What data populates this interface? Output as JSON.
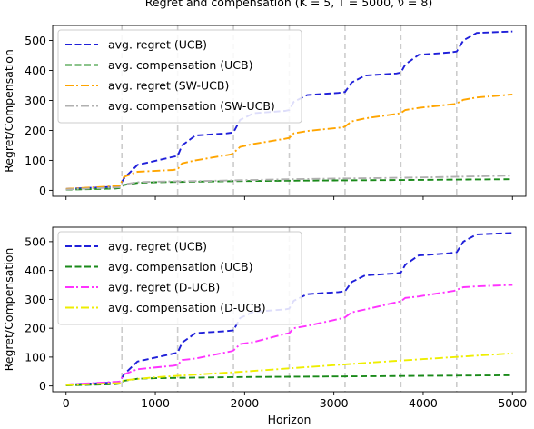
{
  "title": "Regret and compensation (K = 5, T = 5000, ν = 8)",
  "x_label": "Horizon",
  "colors": {
    "ucb_regret": "#1f1fd9",
    "compensation_green": "#1a8a1a",
    "sw_regret": "#ffa500",
    "sw_comp": "#b0b0b0",
    "d_regret": "#ff33ff",
    "d_comp": "#eeee00",
    "vline": "#cccccc"
  },
  "chart_data": [
    {
      "type": "line",
      "ylabel": "Regret/Compensation",
      "xlabel": "",
      "xlim": [
        -150,
        5150
      ],
      "ylim": [
        -20,
        550
      ],
      "x_ticks": [
        "0",
        "1000",
        "2000",
        "3000",
        "4000",
        "5000"
      ],
      "x_tick_values": [
        0,
        1000,
        2000,
        3000,
        4000,
        5000
      ],
      "y_ticks": [
        "0",
        "100",
        "200",
        "300",
        "400",
        "500"
      ],
      "y_tick_values": [
        0,
        100,
        200,
        300,
        400,
        500
      ],
      "show_x_tick_labels": false,
      "change_points": [
        625,
        1250,
        1875,
        2500,
        3125,
        3750,
        4375
      ],
      "legend_position": "top-left",
      "series": [
        {
          "name": "avg. regret (UCB)",
          "style": "dashed",
          "color_key": "ucb_regret",
          "x": [
            0,
            550,
            600,
            650,
            800,
            1200,
            1250,
            1300,
            1450,
            1800,
            1875,
            1950,
            2100,
            2450,
            2500,
            2550,
            2700,
            3050,
            3125,
            3200,
            3350,
            3700,
            3750,
            3800,
            3950,
            4300,
            4375,
            4450,
            4600,
            5000
          ],
          "y": [
            5,
            12,
            15,
            40,
            85,
            112,
            115,
            150,
            183,
            190,
            193,
            235,
            257,
            265,
            268,
            295,
            318,
            325,
            328,
            360,
            383,
            390,
            393,
            420,
            452,
            460,
            463,
            500,
            525,
            530
          ]
        },
        {
          "name": "avg. compensation (UCB)",
          "style": "dashed",
          "color_key": "compensation_green",
          "x": [
            0,
            550,
            600,
            650,
            800,
            1000,
            1500,
            2000,
            2500,
            3000,
            3500,
            4000,
            4500,
            5000
          ],
          "y": [
            2,
            6,
            8,
            18,
            25,
            27,
            29,
            31,
            32,
            33,
            34,
            35,
            36,
            37
          ]
        },
        {
          "name": "avg. regret (SW-UCB)",
          "style": "dashdot",
          "color_key": "sw_regret",
          "x": [
            0,
            600,
            650,
            800,
            1200,
            1250,
            1300,
            1450,
            1850,
            1875,
            1950,
            2100,
            2450,
            2500,
            2550,
            2700,
            3100,
            3125,
            3200,
            3350,
            3700,
            3750,
            3800,
            3950,
            4350,
            4375,
            4450,
            4600,
            5000
          ],
          "y": [
            5,
            15,
            45,
            62,
            68,
            70,
            90,
            100,
            120,
            125,
            145,
            155,
            172,
            175,
            190,
            198,
            210,
            213,
            230,
            240,
            255,
            258,
            268,
            275,
            288,
            290,
            302,
            310,
            320
          ]
        },
        {
          "name": "avg. compensation (SW-UCB)",
          "style": "dashdot",
          "color_key": "sw_comp",
          "x": [
            0,
            600,
            650,
            800,
            1000,
            1500,
            2000,
            2500,
            3000,
            3500,
            4000,
            4500,
            5000
          ],
          "y": [
            3,
            10,
            20,
            27,
            29,
            31,
            34,
            37,
            39,
            41,
            43,
            46,
            49
          ]
        }
      ]
    },
    {
      "type": "line",
      "ylabel": "Regret/Compensation",
      "xlabel": "Horizon",
      "xlim": [
        -150,
        5150
      ],
      "ylim": [
        -20,
        550
      ],
      "x_ticks": [
        "0",
        "1000",
        "2000",
        "3000",
        "4000",
        "5000"
      ],
      "x_tick_values": [
        0,
        1000,
        2000,
        3000,
        4000,
        5000
      ],
      "y_ticks": [
        "0",
        "100",
        "200",
        "300",
        "400",
        "500"
      ],
      "y_tick_values": [
        0,
        100,
        200,
        300,
        400,
        500
      ],
      "show_x_tick_labels": true,
      "change_points": [
        625,
        1250,
        1875,
        2500,
        3125,
        3750,
        4375
      ],
      "legend_position": "top-left",
      "series": [
        {
          "name": "avg. regret (UCB)",
          "style": "dashed",
          "color_key": "ucb_regret",
          "x": [
            0,
            550,
            600,
            650,
            800,
            1200,
            1250,
            1300,
            1450,
            1800,
            1875,
            1950,
            2100,
            2450,
            2500,
            2550,
            2700,
            3050,
            3125,
            3200,
            3350,
            3700,
            3750,
            3800,
            3950,
            4300,
            4375,
            4450,
            4600,
            5000
          ],
          "y": [
            5,
            12,
            15,
            40,
            85,
            112,
            115,
            150,
            183,
            190,
            193,
            235,
            257,
            265,
            268,
            295,
            318,
            325,
            328,
            360,
            383,
            390,
            393,
            420,
            452,
            460,
            463,
            500,
            525,
            530
          ]
        },
        {
          "name": "avg. compensation (UCB)",
          "style": "dashed",
          "color_key": "compensation_green",
          "x": [
            0,
            550,
            600,
            650,
            800,
            1000,
            1500,
            2000,
            2500,
            3000,
            3500,
            4000,
            4500,
            5000
          ],
          "y": [
            2,
            6,
            8,
            18,
            25,
            27,
            29,
            31,
            32,
            33,
            34,
            35,
            36,
            37
          ]
        },
        {
          "name": "avg. regret (D-UCB)",
          "style": "dashdot",
          "color_key": "d_regret",
          "x": [
            0,
            600,
            650,
            800,
            1200,
            1250,
            1300,
            1450,
            1850,
            1875,
            1950,
            2100,
            2450,
            2500,
            2550,
            2700,
            3100,
            3125,
            3200,
            3350,
            3700,
            3750,
            3800,
            3950,
            4350,
            4375,
            4450,
            4600,
            5000
          ],
          "y": [
            5,
            15,
            40,
            58,
            70,
            73,
            90,
            95,
            120,
            123,
            145,
            152,
            180,
            183,
            200,
            208,
            235,
            238,
            255,
            265,
            290,
            293,
            305,
            310,
            330,
            333,
            342,
            345,
            350
          ]
        },
        {
          "name": "avg. compensation (D-UCB)",
          "style": "dashdot",
          "color_key": "d_comp",
          "x": [
            0,
            600,
            650,
            1000,
            1500,
            2000,
            2500,
            3000,
            3500,
            4000,
            4500,
            5000
          ],
          "y": [
            3,
            10,
            20,
            30,
            40,
            50,
            61,
            72,
            83,
            93,
            103,
            113
          ]
        }
      ]
    }
  ]
}
